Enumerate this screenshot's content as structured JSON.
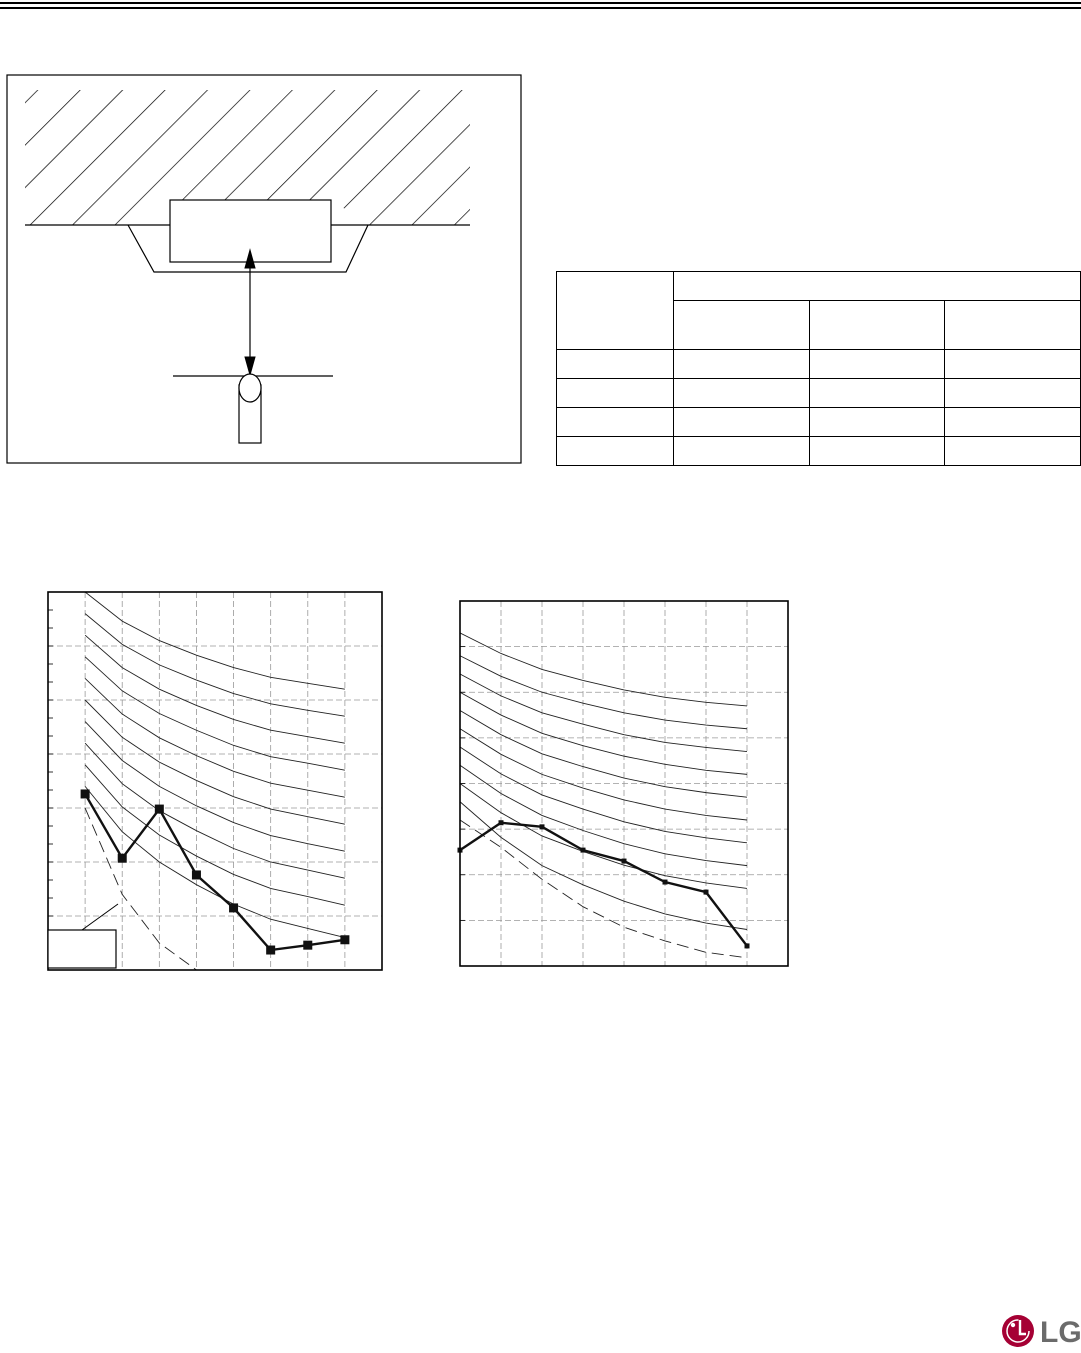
{
  "logo": "LG",
  "chart_data": [
    {
      "type": "line",
      "xlim": [
        0,
        9
      ],
      "ylim": [
        0,
        7
      ],
      "x": [
        1,
        2,
        3,
        4,
        5,
        6,
        7,
        8
      ],
      "series": [
        {
          "style": "thin",
          "color": "#222",
          "values": [
            7,
            6.46,
            6.1,
            5.83,
            5.6,
            5.42,
            5.31,
            5.2
          ]
        },
        {
          "style": "thin",
          "color": "#222",
          "values": [
            6.6,
            6.03,
            5.65,
            5.37,
            5.12,
            4.93,
            4.81,
            4.7
          ]
        },
        {
          "style": "thin",
          "color": "#222",
          "values": [
            6.2,
            5.6,
            5.2,
            4.9,
            4.64,
            4.44,
            4.32,
            4.2
          ]
        },
        {
          "style": "thin",
          "color": "#222",
          "values": [
            5.8,
            5.17,
            4.75,
            4.44,
            4.16,
            3.95,
            3.83,
            3.7
          ]
        },
        {
          "style": "thin",
          "color": "#222",
          "values": [
            5.4,
            4.74,
            4.3,
            3.97,
            3.68,
            3.46,
            3.33,
            3.2
          ]
        },
        {
          "style": "thin",
          "color": "#222",
          "values": [
            5,
            4.31,
            3.85,
            3.51,
            3.21,
            2.98,
            2.84,
            2.7
          ]
        },
        {
          "style": "thin",
          "color": "#222",
          "values": [
            4.6,
            3.88,
            3.4,
            3.04,
            2.73,
            2.49,
            2.34,
            2.2
          ]
        },
        {
          "style": "thin",
          "color": "#222",
          "values": [
            4.2,
            3.45,
            2.95,
            2.58,
            2.25,
            2,
            1.85,
            1.7
          ]
        },
        {
          "style": "thin",
          "color": "#222",
          "values": [
            3.8,
            3.02,
            2.5,
            2.11,
            1.77,
            1.51,
            1.36,
            1.2
          ]
        },
        {
          "style": "thin",
          "color": "#222",
          "values": [
            3.4,
            2.56,
            2,
            1.58,
            1.22,
            0.94,
            0.77,
            0.6
          ]
        },
        {
          "style": "dashed",
          "color": "#222",
          "values": [
            3,
            1.4,
            0.5,
            0,
            null,
            null,
            null,
            null
          ]
        },
        {
          "style": "bold",
          "color": "#111",
          "values": [
            3.26,
            2.07,
            2.98,
            1.76,
            1.15,
            0.37,
            0.46,
            0.56
          ]
        }
      ]
    },
    {
      "type": "line",
      "xlim": [
        0,
        8
      ],
      "ylim": [
        0,
        8
      ],
      "x": [
        0,
        1,
        2,
        3,
        4,
        5,
        6,
        7
      ],
      "series": [
        {
          "style": "thin",
          "color": "#222",
          "values": [
            7.3,
            6.85,
            6.5,
            6.26,
            6.05,
            5.89,
            5.78,
            5.7
          ]
        },
        {
          "style": "thin",
          "color": "#222",
          "values": [
            6.8,
            6.35,
            6,
            5.76,
            5.55,
            5.39,
            5.28,
            5.2
          ]
        },
        {
          "style": "thin",
          "color": "#222",
          "values": [
            6.4,
            5.92,
            5.55,
            5.3,
            5.07,
            4.9,
            4.79,
            4.7
          ]
        },
        {
          "style": "thin",
          "color": "#222",
          "values": [
            6,
            5.5,
            5.1,
            4.83,
            4.6,
            4.42,
            4.29,
            4.2
          ]
        },
        {
          "style": "thin",
          "color": "#222",
          "values": [
            5.6,
            5.07,
            4.65,
            4.37,
            4.12,
            3.93,
            3.8,
            3.7
          ]
        },
        {
          "style": "thin",
          "color": "#222",
          "values": [
            5.2,
            4.64,
            4.2,
            3.9,
            3.64,
            3.44,
            3.3,
            3.2
          ]
        },
        {
          "style": "thin",
          "color": "#222",
          "values": [
            4.8,
            4.21,
            3.75,
            3.44,
            3.16,
            2.95,
            2.81,
            2.7
          ]
        },
        {
          "style": "thin",
          "color": "#222",
          "values": [
            4.4,
            3.78,
            3.3,
            2.97,
            2.68,
            2.46,
            2.31,
            2.2
          ]
        },
        {
          "style": "thin",
          "color": "#222",
          "values": [
            4,
            3.36,
            2.85,
            2.51,
            2.21,
            1.98,
            1.82,
            1.7
          ]
        },
        {
          "style": "thin",
          "color": "#222",
          "values": [
            3.6,
            2.82,
            2.2,
            1.78,
            1.42,
            1.14,
            0.94,
            0.8
          ]
        },
        {
          "style": "dashed",
          "color": "#222",
          "values": [
            3.2,
            2.6,
            1.9,
            1.3,
            0.85,
            0.55,
            0.3,
            0.18
          ]
        },
        {
          "style": "bold",
          "color": "#111",
          "values": [
            2.54,
            3.14,
            3.05,
            2.54,
            2.3,
            1.84,
            1.62,
            0.44
          ]
        }
      ]
    }
  ]
}
